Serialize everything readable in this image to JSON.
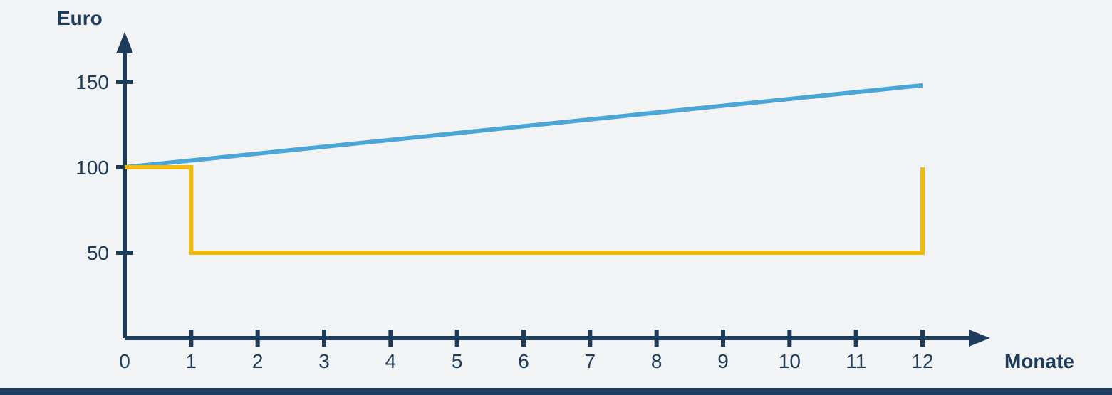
{
  "chart": {
    "type": "line",
    "background_color": "#f2f3f4",
    "axis_color": "#1d3c5c",
    "footer_bar_color": "#1d3c5c",
    "label_color": "#1d3c5c",
    "axis_stroke_width": 6,
    "tick_stroke_width": 6,
    "y_axis": {
      "label": "Euro",
      "min": 0,
      "max": 160,
      "ticks": [
        50,
        100,
        150
      ],
      "tick_labels": [
        "50",
        "100",
        "150"
      ]
    },
    "x_axis": {
      "label": "Monate",
      "min": 0,
      "max": 13,
      "ticks": [
        0,
        1,
        2,
        3,
        4,
        5,
        6,
        7,
        8,
        9,
        10,
        11,
        12
      ],
      "tick_labels": [
        "0",
        "1",
        "2",
        "3",
        "4",
        "5",
        "6",
        "7",
        "8",
        "9",
        "10",
        "11",
        "12"
      ]
    },
    "series": [
      {
        "name": "blue-line",
        "color": "#4aa6d6",
        "stroke_width": 6,
        "points": [
          [
            0,
            100
          ],
          [
            12,
            148
          ]
        ]
      },
      {
        "name": "yellow-step",
        "color": "#f2b90f",
        "stroke_width": 6,
        "points": [
          [
            0,
            100
          ],
          [
            1,
            100
          ],
          [
            1,
            50
          ],
          [
            12,
            50
          ],
          [
            12,
            100
          ]
        ]
      }
    ],
    "label_fontsize": 28,
    "tick_fontsize": 28
  }
}
